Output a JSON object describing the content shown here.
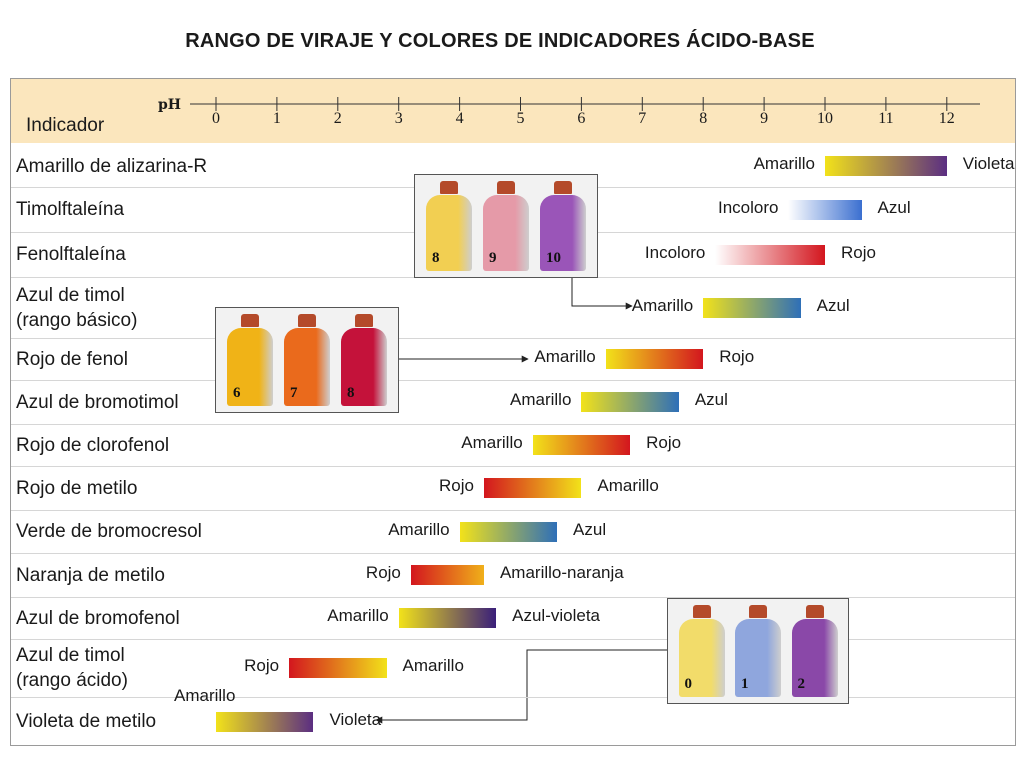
{
  "title": "RANGO DE VIRAJE Y COLORES DE INDICADORES ÁCIDO-BASE",
  "header": {
    "indicator_label": "Indicador",
    "ph_label": "pH",
    "ticks": [
      "0",
      "1",
      "2",
      "3",
      "4",
      "5",
      "6",
      "7",
      "8",
      "9",
      "10",
      "11",
      "12"
    ]
  },
  "colors": {
    "header_bg": "#fbe6bd",
    "amarillo": "#f2e21a",
    "violeta": "#5b2e82",
    "azul": "#2e6fb8",
    "rojo": "#d3161e",
    "incoloro": "#ffffff",
    "naranja": "#f0a01a"
  },
  "indicators": [
    {
      "name": "Amarillo de alizarina-R",
      "low_ph": 10.0,
      "high_ph": 12.0,
      "acid_label": "Amarillo",
      "base_label": "Violeta",
      "acid_color": "#f2e21a",
      "base_color": "#5b2e82"
    },
    {
      "name": "Timolftaleína",
      "low_ph": 9.4,
      "high_ph": 10.6,
      "acid_label": "Incoloro",
      "base_label": "Azul",
      "acid_color": "#ffffff",
      "base_color": "#3b6fd0"
    },
    {
      "name": "Fenolftaleína",
      "low_ph": 8.2,
      "high_ph": 10.0,
      "acid_label": "Incoloro",
      "base_label": "Rojo",
      "acid_color": "#ffffff",
      "base_color": "#d3161e"
    },
    {
      "name": "Azul de timol\n(rango básico)",
      "low_ph": 8.0,
      "high_ph": 9.6,
      "acid_label": "Amarillo",
      "base_label": "Azul",
      "acid_color": "#f2e21a",
      "base_color": "#2e6fb8"
    },
    {
      "name": "Rojo de fenol",
      "low_ph": 6.4,
      "high_ph": 8.0,
      "acid_label": "Amarillo",
      "base_label": "Rojo",
      "acid_color": "#f2e21a",
      "base_color": "#d3161e"
    },
    {
      "name": "Azul de bromotimol",
      "low_ph": 6.0,
      "high_ph": 7.6,
      "acid_label": "Amarillo",
      "base_label": "Azul",
      "acid_color": "#f2e21a",
      "base_color": "#2e6fb8"
    },
    {
      "name": "Rojo de clorofenol",
      "low_ph": 5.2,
      "high_ph": 6.8,
      "acid_label": "Amarillo",
      "base_label": "Rojo",
      "acid_color": "#f2e21a",
      "base_color": "#d3161e"
    },
    {
      "name": "Rojo de metilo",
      "low_ph": 4.4,
      "high_ph": 6.0,
      "acid_label": "Rojo",
      "base_label": "Amarillo",
      "acid_color": "#d3161e",
      "base_color": "#f2e21a"
    },
    {
      "name": "Verde de bromocresol",
      "low_ph": 4.0,
      "high_ph": 5.6,
      "acid_label": "Amarillo",
      "base_label": "Azul",
      "acid_color": "#f2e21a",
      "base_color": "#2e6fb8"
    },
    {
      "name": "Naranja de metilo",
      "low_ph": 3.2,
      "high_ph": 4.4,
      "acid_label": "Rojo",
      "base_label": "Amarillo-naranja",
      "acid_color": "#d3161e",
      "base_color": "#f0b01a"
    },
    {
      "name": "Azul de bromofenol",
      "low_ph": 3.0,
      "high_ph": 4.6,
      "acid_label": "Amarillo",
      "base_label": "Azul-violeta",
      "acid_color": "#f2e21a",
      "base_color": "#3a1f7a"
    },
    {
      "name": "Azul de timol\n(rango ácido)",
      "low_ph": 1.2,
      "high_ph": 2.8,
      "acid_label": "Rojo",
      "base_label": "Amarillo",
      "acid_color": "#d3161e",
      "base_color": "#f2e21a"
    },
    {
      "name": "Violeta de metilo",
      "low_ph": 0.0,
      "high_ph": 1.6,
      "acid_label": "Amarillo",
      "base_label": "Violeta",
      "acid_color": "#f2e21a",
      "base_color": "#5b2e82"
    }
  ],
  "photos": [
    {
      "caption_numbers": [
        "8",
        "9",
        "10"
      ],
      "bottle_colors": [
        "#f2cf52",
        "#e59aa8",
        "#9a55b8"
      ]
    },
    {
      "caption_numbers": [
        "6",
        "7",
        "8"
      ],
      "bottle_colors": [
        "#f0b317",
        "#ea6a1c",
        "#c4123a"
      ]
    },
    {
      "caption_numbers": [
        "0",
        "1",
        "2"
      ],
      "bottle_colors": [
        "#f2dc6a",
        "#8fa6dd",
        "#8a48a8"
      ]
    }
  ]
}
